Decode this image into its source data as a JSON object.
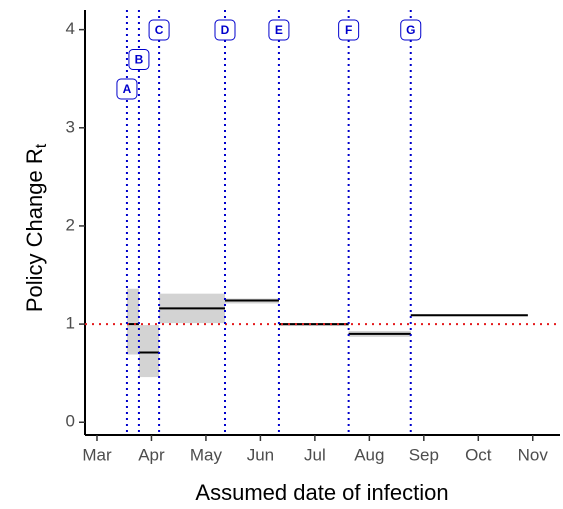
{
  "chart_data": {
    "type": "step-ribbon",
    "x_label": "Assumed date of infection",
    "y_label": "Policy Change R",
    "y_label_sub": "t",
    "xlim": [
      2.78,
      11.5
    ],
    "xticks": [
      {
        "value": 3,
        "label": "Mar"
      },
      {
        "value": 4,
        "label": "Apr"
      },
      {
        "value": 5,
        "label": "May"
      },
      {
        "value": 6,
        "label": "Jun"
      },
      {
        "value": 7,
        "label": "Jul"
      },
      {
        "value": 8,
        "label": "Aug"
      },
      {
        "value": 9,
        "label": "Sep"
      },
      {
        "value": 10,
        "label": "Oct"
      },
      {
        "value": 11,
        "label": "Nov"
      }
    ],
    "ylim": [
      -0.13,
      4.2
    ],
    "yticks": [
      0,
      1,
      2,
      3,
      4
    ],
    "line_color": "#000000",
    "ribbon_color": "#d3d3d3",
    "segments": [
      {
        "x": [
          3.55,
          3.77
        ],
        "value": 1.0,
        "lower": 0.69,
        "upper": 1.36
      },
      {
        "x": [
          3.77,
          4.14
        ],
        "value": 0.71,
        "lower": 0.46,
        "upper": 0.99
      },
      {
        "x": [
          4.14,
          5.35
        ],
        "value": 1.16,
        "lower": 1.01,
        "upper": 1.31
      },
      {
        "x": [
          5.35,
          6.34
        ],
        "value": 1.24,
        "lower": 1.21,
        "upper": 1.26
      },
      {
        "x": [
          6.34,
          7.62
        ],
        "value": 1.0,
        "lower": 0.98,
        "upper": 1.01
      },
      {
        "x": [
          7.62,
          8.76
        ],
        "value": 0.9,
        "lower": 0.87,
        "upper": 0.93
      },
      {
        "x": [
          8.76,
          10.91
        ],
        "value": 1.09,
        "lower": 1.08,
        "upper": 1.1
      }
    ],
    "event_color": "#0000cc",
    "events": [
      {
        "label": "A",
        "x": 3.55
      },
      {
        "label": "B",
        "x": 3.77
      },
      {
        "label": "C",
        "x": 4.14
      },
      {
        "label": "D",
        "x": 5.35
      },
      {
        "label": "E",
        "x": 6.34
      },
      {
        "label": "F",
        "x": 7.62
      },
      {
        "label": "G",
        "x": 8.76
      }
    ],
    "reference_line": 1,
    "reference_color": "#e41a1c"
  }
}
